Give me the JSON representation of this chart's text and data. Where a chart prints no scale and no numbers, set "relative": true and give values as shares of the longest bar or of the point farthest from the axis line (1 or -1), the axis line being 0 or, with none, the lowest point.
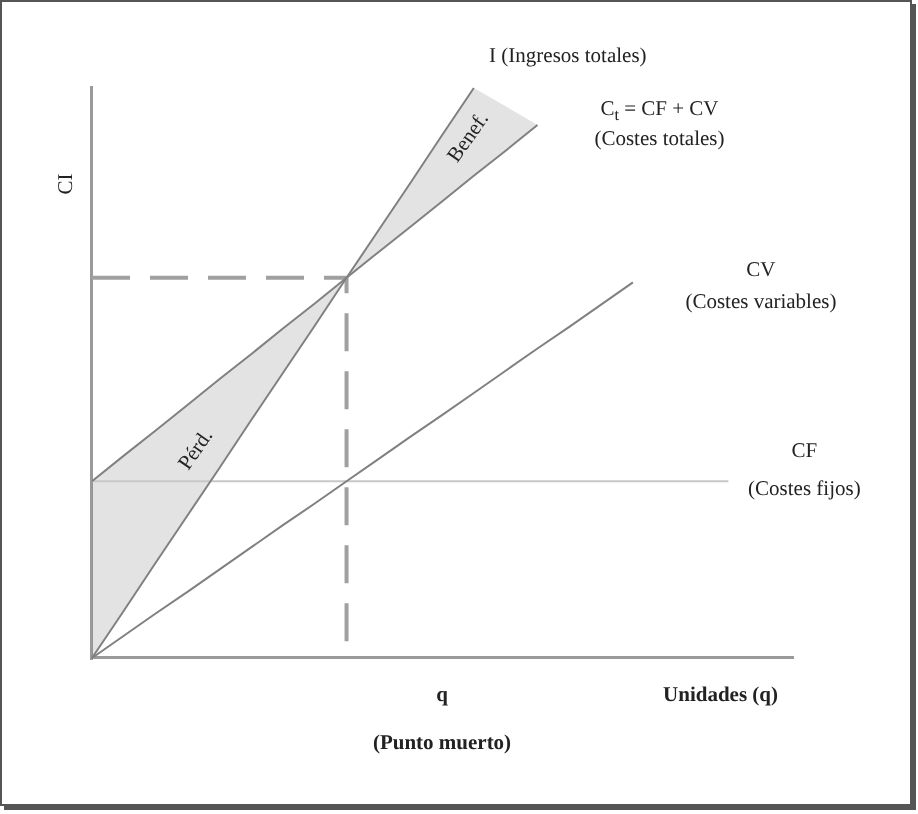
{
  "chart_data": {
    "type": "line",
    "relative": true,
    "xlabel": "Unidades (q)",
    "ylabel": "CI",
    "marker": "none",
    "legend": false,
    "categories": [
      null,
      null,
      null,
      null,
      null,
      null,
      null,
      null,
      null,
      null,
      null,
      null,
      null,
      null,
      null,
      null,
      null,
      null,
      null,
      null,
      null,
      null,
      null
    ],
    "annotations": [
      "q",
      "(Punto muerto)",
      "Pérd.",
      "Benef."
    ],
    "series": [
      {
        "name": "I (Ingresos totales)",
        "color": "#808080",
        "values": [
          0,
          0.083,
          0.167,
          0.25,
          0.333,
          0.417,
          0.5,
          0.583,
          0.667,
          0.75,
          0.833,
          0.917,
          1,
          null,
          null,
          null,
          null,
          null,
          null,
          null,
          null,
          null,
          null
        ]
      },
      {
        "name": "C$_{t}$ = CF + CV (Costes totales)",
        "color": "#808080",
        "values": [
          0.31,
          0.355,
          0.399,
          0.444,
          0.489,
          0.533,
          0.578,
          0.622,
          0.667,
          0.712,
          0.756,
          0.801,
          0.846,
          0.89,
          0.935,
          null,
          null,
          null,
          null,
          null,
          null,
          null,
          null
        ],
        "lower": [
          0,
          0.083,
          0.167,
          0.25,
          0.333,
          0.417,
          0.5,
          0.583,
          0.667,
          0.712,
          0.756,
          0.801,
          0.846,
          0.89,
          0.935,
          null,
          null,
          null,
          null,
          null,
          null,
          null,
          null
        ],
        "upper": [
          0.31,
          0.355,
          0.399,
          0.444,
          0.489,
          0.533,
          0.578,
          0.622,
          0.667,
          0.75,
          0.833,
          0.917,
          1,
          0.968,
          0.935,
          null,
          null,
          null,
          null,
          null,
          null,
          null,
          null
        ]
      },
      {
        "name": "CV (Costes variables)",
        "color": "#808080",
        "values": [
          0,
          0.039,
          0.078,
          0.116,
          0.155,
          0.194,
          0.233,
          0.271,
          0.31,
          0.349,
          0.388,
          0.426,
          0.465,
          0.504,
          0.543,
          0.581,
          0.62,
          0.659,
          null,
          null,
          null,
          null,
          null
        ]
      },
      {
        "name": "CF (Costes fijos)",
        "color": "#c8c8c8",
        "values": [
          0.31,
          0.31,
          0.31,
          0.31,
          0.31,
          0.31,
          0.31,
          0.31,
          0.31,
          0.31,
          0.31,
          0.31,
          0.31,
          0.31,
          0.31,
          0.31,
          0.31,
          0.31,
          0.31,
          0.31,
          0.31,
          null,
          null
        ]
      },
      {
        "type": "step",
        "color": "#a0a0a0",
        "line_style": "dashed",
        "values": [
          0.667,
          0.667,
          0.667,
          0.667,
          0.667,
          0.667,
          0.667,
          0.667,
          0,
          null,
          null,
          null,
          null,
          null,
          null,
          null,
          null,
          null,
          null,
          null,
          null,
          null,
          null
        ]
      }
    ]
  }
}
